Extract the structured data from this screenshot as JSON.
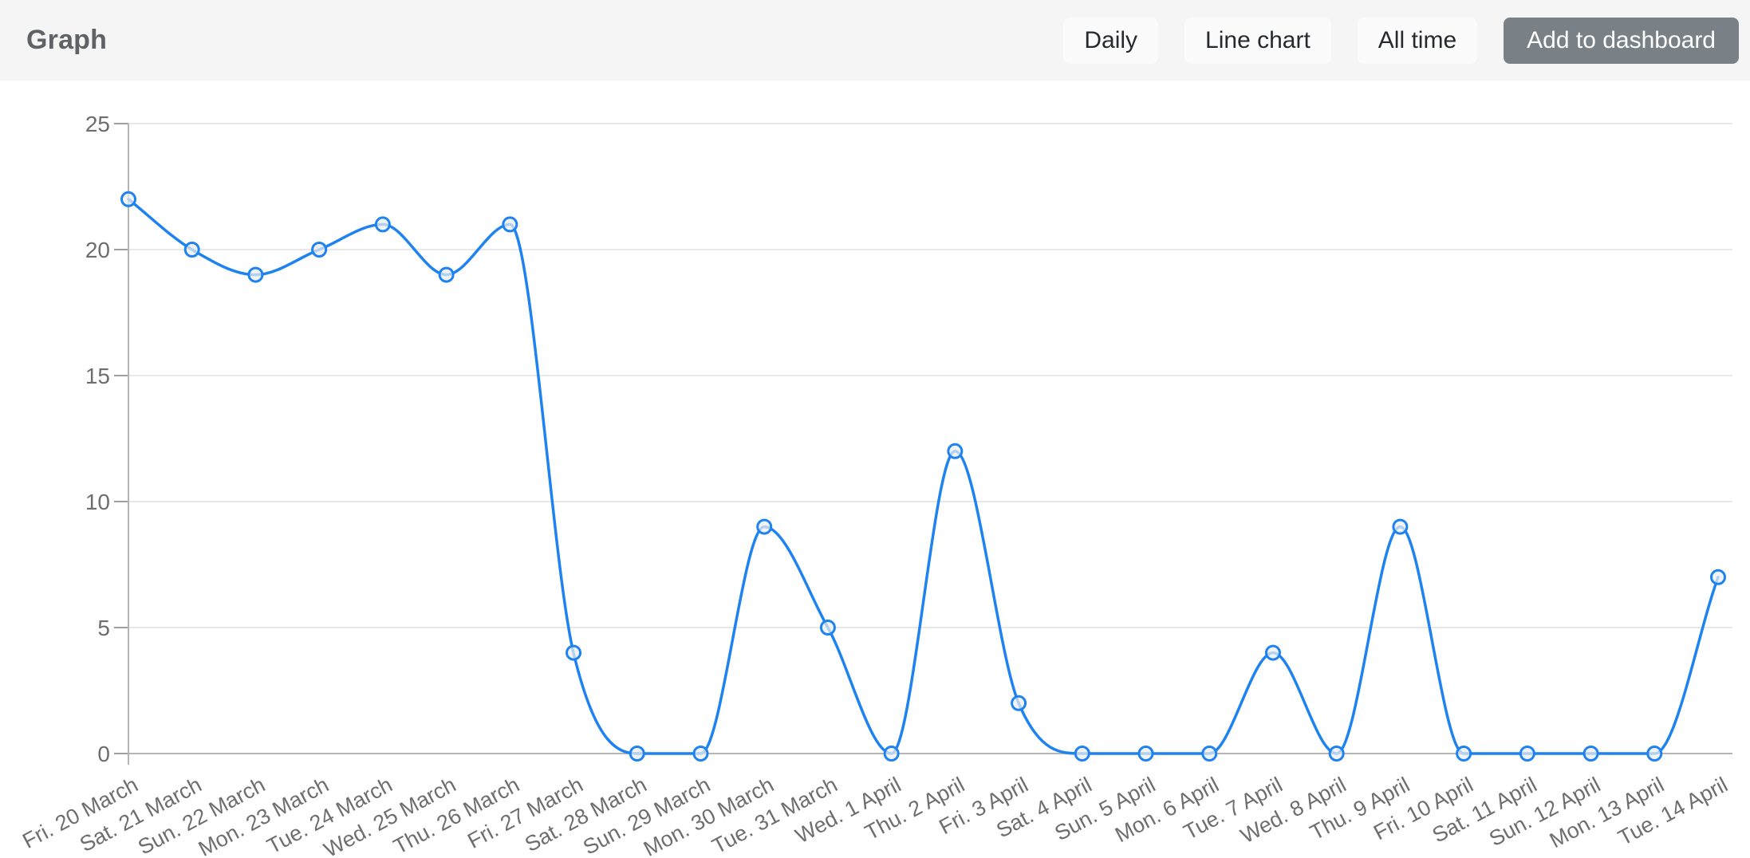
{
  "header": {
    "title": "Graph",
    "buttons": [
      {
        "label": "Daily",
        "variant": "light"
      },
      {
        "label": "Line chart",
        "variant": "light"
      },
      {
        "label": "All time",
        "variant": "light"
      },
      {
        "label": "Add to dashboard",
        "variant": "dark"
      }
    ]
  },
  "colors": {
    "line": "#1e82f0",
    "marker_fill": "#eceef0",
    "grid": "#e8e8e8",
    "axis": "#b5b5b5",
    "tick": "#9e9e9e",
    "label_text": "#6e6e6e",
    "header_bg": "#f5f5f6",
    "dark_button_bg": "#798086"
  },
  "chart_data": {
    "type": "line",
    "title": "Graph",
    "categories": [
      "Fri. 20 March",
      "Sat. 21 March",
      "Sun. 22 March",
      "Mon. 23 March",
      "Tue. 24 March",
      "Wed. 25 March",
      "Thu. 26 March",
      "Fri. 27 March",
      "Sat. 28 March",
      "Sun. 29 March",
      "Mon. 30 March",
      "Tue. 31 March",
      "Wed. 1 April",
      "Thu. 2 April",
      "Fri. 3 April",
      "Sat. 4 April",
      "Sun. 5 April",
      "Mon. 6 April",
      "Tue. 7 April",
      "Wed. 8 April",
      "Thu. 9 April",
      "Fri. 10 April",
      "Sat. 11 April",
      "Sun. 12 April",
      "Mon. 13 April",
      "Tue. 14 April"
    ],
    "series": [
      {
        "name": "values",
        "values": [
          22,
          20,
          19,
          20,
          21,
          19,
          21,
          4,
          0,
          0,
          9,
          5,
          0,
          12,
          2,
          0,
          0,
          0,
          4,
          0,
          9,
          0,
          0,
          0,
          0,
          7
        ]
      }
    ],
    "xlabel": "",
    "ylabel": "",
    "ylim": [
      0,
      25
    ],
    "yticks": [
      0,
      5,
      10,
      15,
      20,
      25
    ],
    "grid": true,
    "legend": "none",
    "curve": "smooth-monotone",
    "marker": "circle"
  }
}
